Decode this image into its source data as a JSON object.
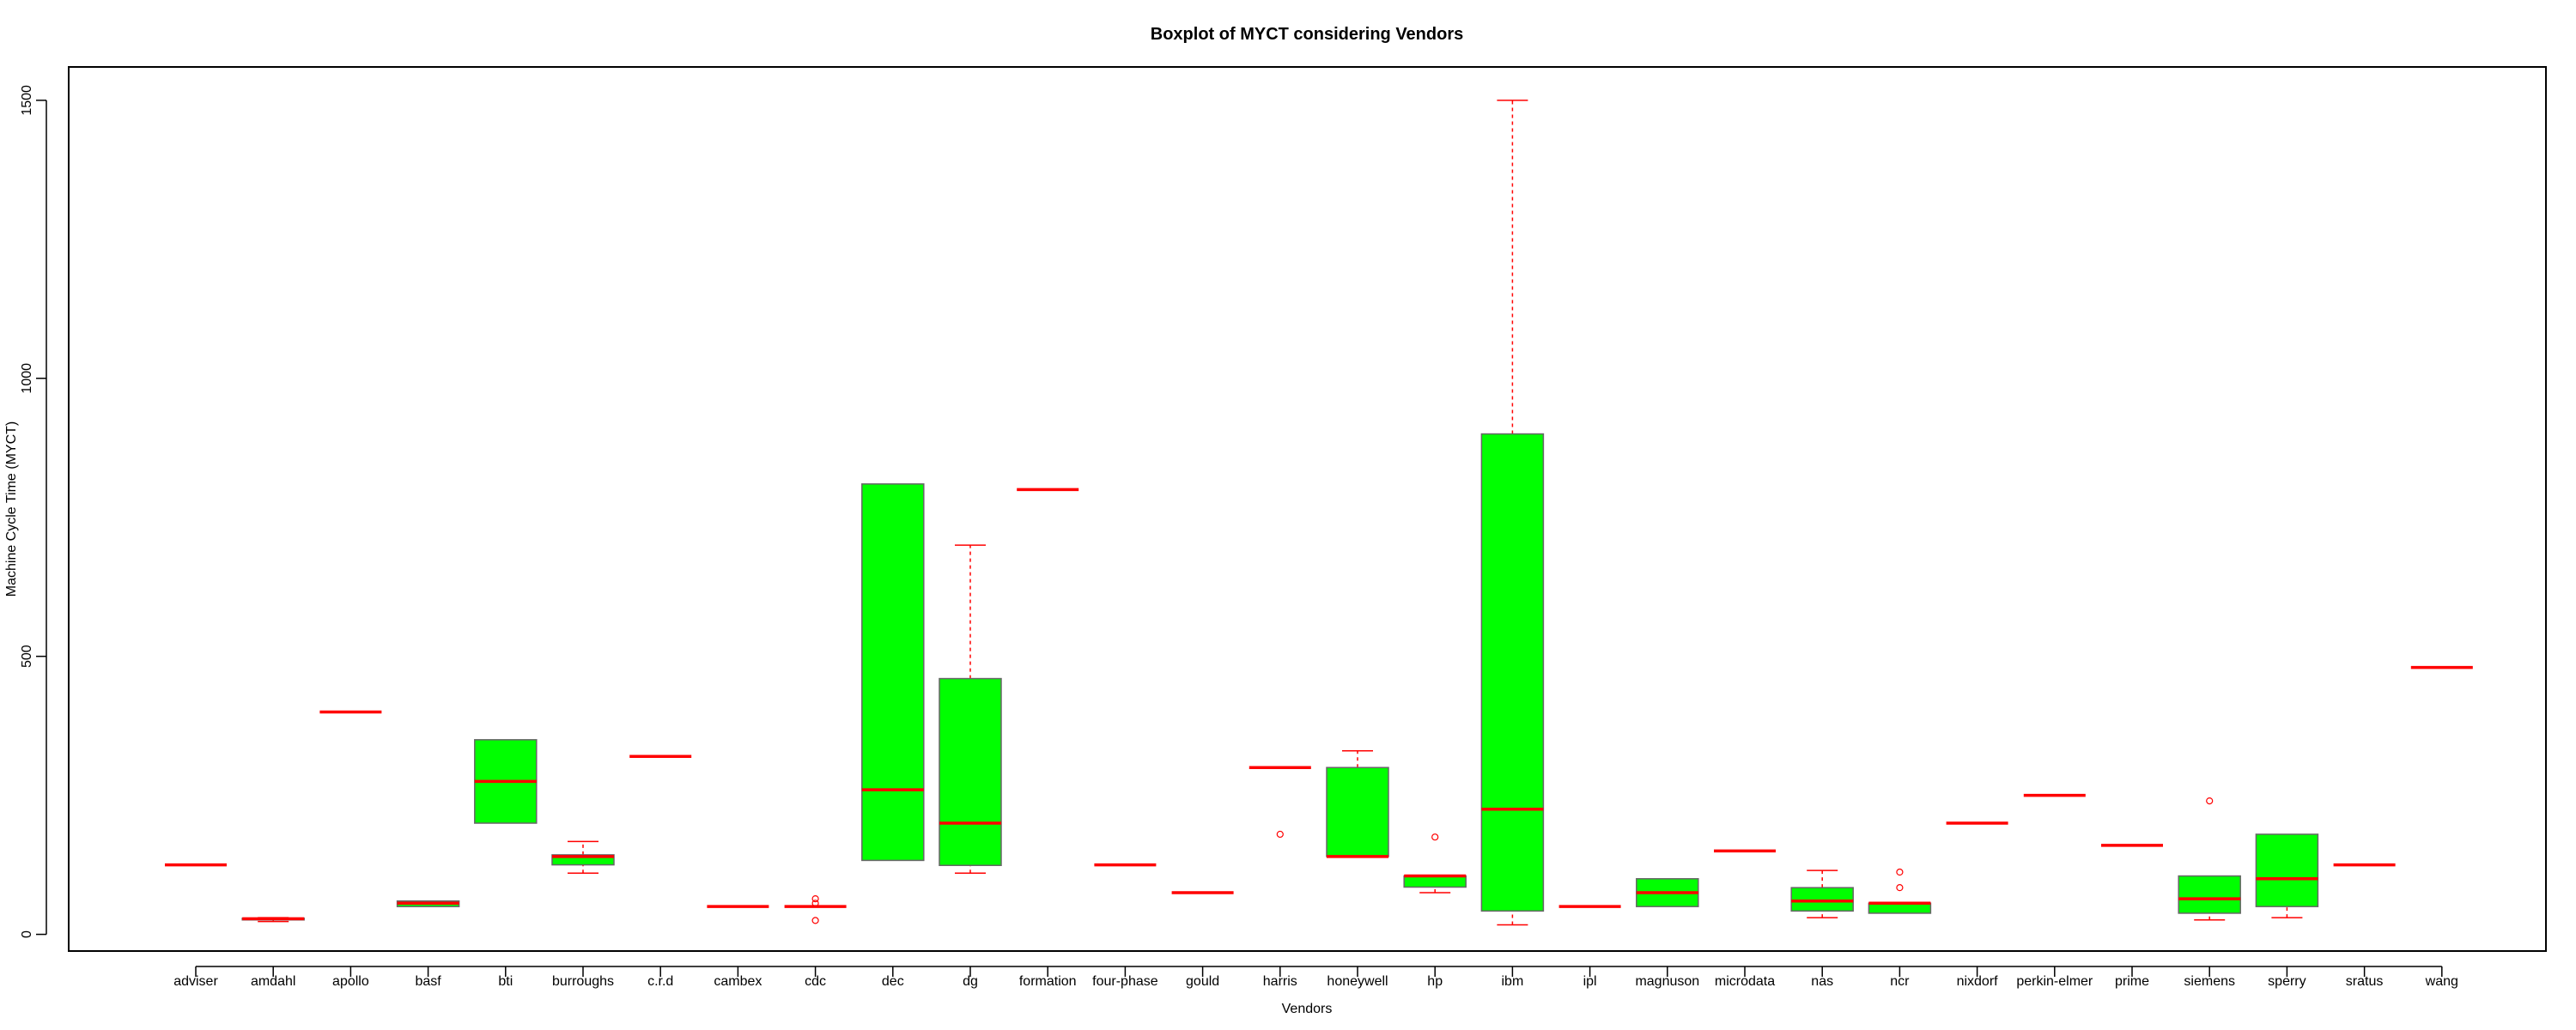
{
  "chart_data": {
    "type": "boxplot",
    "title": "Boxplot of MYCT considering Vendors",
    "xlabel": "Vendors",
    "ylabel": "Machine Cycle Time (MYCT)",
    "ylim": [
      -30,
      1560
    ],
    "yticks": [
      0,
      500,
      1000,
      1500
    ],
    "box_color": "#00ff00",
    "line_color": "#ff0000",
    "border_color": "#666666",
    "categories": [
      "adviser",
      "amdahl",
      "apollo",
      "basf",
      "bti",
      "burroughs",
      "c.r.d",
      "cambex",
      "cdc",
      "dec",
      "dg",
      "formation",
      "four-phase",
      "gould",
      "harris",
      "honeywell",
      "hp",
      "ibm",
      "ipl",
      "magnuson",
      "microdata",
      "nas",
      "ncr",
      "nixdorf",
      "perkin-elmer",
      "prime",
      "siemens",
      "sperry",
      "sratus",
      "wang"
    ],
    "boxes": [
      {
        "min": 125,
        "q1": 125,
        "median": 125,
        "q3": 125,
        "max": 125,
        "outliers": []
      },
      {
        "min": 23,
        "q1": 26,
        "median": 28,
        "q3": 29,
        "max": 30,
        "outliers": []
      },
      {
        "min": 400,
        "q1": 400,
        "median": 400,
        "q3": 400,
        "max": 400,
        "outliers": []
      },
      {
        "min": 50,
        "q1": 50,
        "median": 56,
        "q3": 60,
        "max": 60,
        "outliers": []
      },
      {
        "min": 200,
        "q1": 200,
        "median": 275,
        "q3": 350,
        "max": 350,
        "outliers": []
      },
      {
        "min": 110,
        "q1": 125,
        "median": 140,
        "q3": 143,
        "max": 167,
        "outliers": []
      },
      {
        "min": 320,
        "q1": 320,
        "median": 320,
        "q3": 320,
        "max": 320,
        "outliers": []
      },
      {
        "min": 50,
        "q1": 50,
        "median": 50,
        "q3": 50,
        "max": 50,
        "outliers": []
      },
      {
        "min": 50,
        "q1": 50,
        "median": 50,
        "q3": 50,
        "max": 50,
        "outliers": [
          25,
          56,
          64
        ]
      },
      {
        "min": 133,
        "q1": 133,
        "median": 260,
        "q3": 810,
        "max": 810,
        "outliers": []
      },
      {
        "min": 110,
        "q1": 124,
        "median": 200,
        "q3": 460,
        "max": 700,
        "outliers": []
      },
      {
        "min": 800,
        "q1": 800,
        "median": 800,
        "q3": 800,
        "max": 800,
        "outliers": []
      },
      {
        "min": 125,
        "q1": 125,
        "median": 125,
        "q3": 125,
        "max": 125,
        "outliers": []
      },
      {
        "min": 75,
        "q1": 75,
        "median": 75,
        "q3": 75,
        "max": 75,
        "outliers": []
      },
      {
        "min": 300,
        "q1": 300,
        "median": 300,
        "q3": 300,
        "max": 300,
        "outliers": [
          180
        ]
      },
      {
        "min": 140,
        "q1": 140,
        "median": 140,
        "q3": 300,
        "max": 330,
        "outliers": []
      },
      {
        "min": 75,
        "q1": 85,
        "median": 105,
        "q3": 105,
        "max": 105,
        "outliers": [
          175
        ]
      },
      {
        "min": 17,
        "q1": 42,
        "median": 225,
        "q3": 900,
        "max": 1500,
        "outliers": []
      },
      {
        "min": 50,
        "q1": 50,
        "median": 50,
        "q3": 50,
        "max": 50,
        "outliers": []
      },
      {
        "min": 50,
        "q1": 50,
        "median": 75,
        "q3": 100,
        "max": 100,
        "outliers": []
      },
      {
        "min": 150,
        "q1": 150,
        "median": 150,
        "q3": 150,
        "max": 150,
        "outliers": []
      },
      {
        "min": 30,
        "q1": 42,
        "median": 60,
        "q3": 84,
        "max": 115,
        "outliers": []
      },
      {
        "min": 38,
        "q1": 38,
        "median": 56,
        "q3": 56,
        "max": 56,
        "outliers": [
          84,
          112
        ]
      },
      {
        "min": 200,
        "q1": 200,
        "median": 200,
        "q3": 200,
        "max": 200,
        "outliers": []
      },
      {
        "min": 250,
        "q1": 250,
        "median": 250,
        "q3": 250,
        "max": 250,
        "outliers": []
      },
      {
        "min": 160,
        "q1": 160,
        "median": 160,
        "q3": 160,
        "max": 160,
        "outliers": []
      },
      {
        "min": 26,
        "q1": 38,
        "median": 64,
        "q3": 105,
        "max": 105,
        "outliers": [
          240
        ]
      },
      {
        "min": 30,
        "q1": 50,
        "median": 100,
        "q3": 180,
        "max": 180,
        "outliers": []
      },
      {
        "min": 125,
        "q1": 125,
        "median": 125,
        "q3": 125,
        "max": 125,
        "outliers": []
      },
      {
        "min": 480,
        "q1": 480,
        "median": 480,
        "q3": 480,
        "max": 480,
        "outliers": []
      }
    ]
  }
}
